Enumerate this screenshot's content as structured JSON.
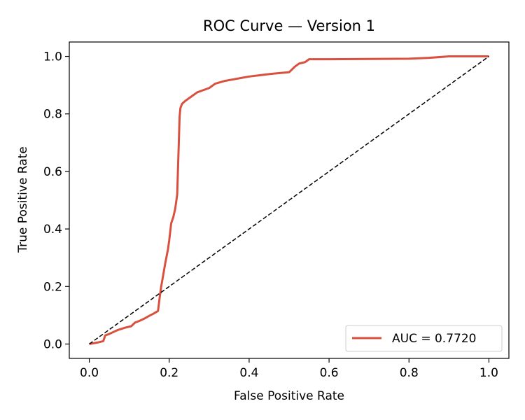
{
  "chart_data": {
    "type": "line",
    "title": "ROC Curve — Version 1",
    "xlabel": "False Positive Rate",
    "ylabel": "True Positive Rate",
    "xlim": [
      -0.05,
      1.05
    ],
    "ylim": [
      -0.05,
      1.05
    ],
    "xticks": [
      0.0,
      0.2,
      0.4,
      0.6,
      0.8,
      1.0
    ],
    "yticks": [
      0.0,
      0.2,
      0.4,
      0.6,
      0.8,
      1.0
    ],
    "xtick_labels": [
      "0.0",
      "0.2",
      "0.4",
      "0.6",
      "0.8",
      "1.0"
    ],
    "ytick_labels": [
      "0.0",
      "0.2",
      "0.4",
      "0.6",
      "0.8",
      "1.0"
    ],
    "grid": false,
    "legend_position": "lower right",
    "series": [
      {
        "name": "AUC = 0.7720",
        "color": "#d9503f",
        "line_style": "solid",
        "x": [
          0.0,
          0.02,
          0.035,
          0.04,
          0.05,
          0.07,
          0.09,
          0.105,
          0.115,
          0.125,
          0.14,
          0.15,
          0.16,
          0.172,
          0.176,
          0.18,
          0.185,
          0.19,
          0.197,
          0.2,
          0.205,
          0.21,
          0.215,
          0.22,
          0.224,
          0.226,
          0.228,
          0.232,
          0.236,
          0.24,
          0.25,
          0.26,
          0.27,
          0.28,
          0.3,
          0.315,
          0.34,
          0.36,
          0.38,
          0.4,
          0.43,
          0.46,
          0.5,
          0.515,
          0.525,
          0.54,
          0.55,
          0.6,
          0.7,
          0.8,
          0.85,
          0.9,
          1.0
        ],
        "y": [
          0.0,
          0.005,
          0.01,
          0.03,
          0.035,
          0.048,
          0.057,
          0.062,
          0.075,
          0.08,
          0.09,
          0.098,
          0.105,
          0.115,
          0.16,
          0.2,
          0.24,
          0.28,
          0.33,
          0.36,
          0.42,
          0.44,
          0.47,
          0.52,
          0.7,
          0.79,
          0.82,
          0.835,
          0.84,
          0.845,
          0.855,
          0.865,
          0.875,
          0.88,
          0.89,
          0.905,
          0.915,
          0.92,
          0.925,
          0.93,
          0.935,
          0.94,
          0.945,
          0.965,
          0.975,
          0.98,
          0.99,
          0.99,
          0.991,
          0.992,
          0.995,
          1.0,
          1.0
        ]
      },
      {
        "name": "",
        "color": "#000000",
        "line_style": "dashed",
        "x": [
          0.0,
          1.0
        ],
        "y": [
          0.0,
          1.0
        ]
      }
    ]
  }
}
